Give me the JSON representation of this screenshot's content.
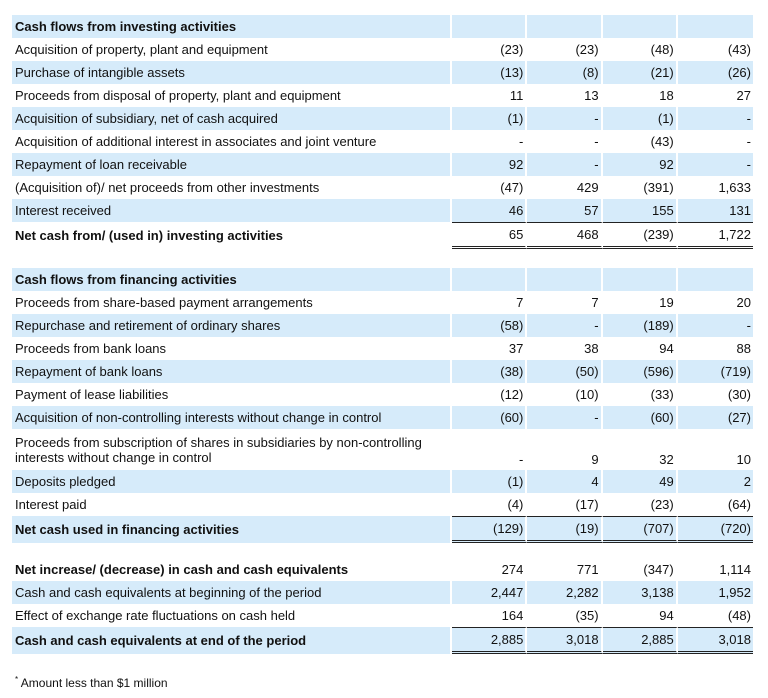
{
  "sections": [
    {
      "rows": [
        {
          "label": "Cash flows from investing activities",
          "values": [
            "",
            "",
            "",
            ""
          ],
          "bold": true,
          "shaded": true
        },
        {
          "label": "Acquisition of property, plant and equipment",
          "values": [
            "(23)",
            "(23)",
            "(48)",
            "(43)"
          ]
        },
        {
          "label": "Purchase of intangible assets",
          "values": [
            "(13)",
            "(8)",
            "(21)",
            "(26)"
          ],
          "shaded": true
        },
        {
          "label": "Proceeds from disposal of property, plant and equipment",
          "values": [
            "11",
            "13",
            "18",
            "27"
          ]
        },
        {
          "label": "Acquisition of subsidiary, net of cash acquired",
          "values": [
            "(1)",
            "-",
            "(1)",
            "-"
          ],
          "shaded": true
        },
        {
          "label": "Acquisition of additional interest in associates and joint venture",
          "values": [
            "-",
            "-",
            "(43)",
            "-"
          ]
        },
        {
          "label": "Repayment of loan receivable",
          "values": [
            "92",
            "-",
            "92",
            "-"
          ],
          "shaded": true
        },
        {
          "label": "(Acquisition of)/ net proceeds from other investments",
          "values": [
            "(47)",
            "429",
            "(391)",
            "1,633"
          ]
        },
        {
          "label": "Interest received",
          "values": [
            "46",
            "57",
            "155",
            "131"
          ],
          "shaded": true
        },
        {
          "label": "Net cash from/ (used in) investing activities",
          "values": [
            "65",
            "468",
            "(239)",
            "1,722"
          ],
          "bold": true,
          "total": true
        }
      ]
    },
    {
      "rows": [
        {
          "label": "Cash flows from financing activities",
          "values": [
            "",
            "",
            "",
            ""
          ],
          "bold": true,
          "shaded": true
        },
        {
          "label": "Proceeds from share-based payment arrangements",
          "values": [
            "7",
            "7",
            "19",
            "20"
          ]
        },
        {
          "label": "Repurchase and retirement of ordinary shares",
          "values": [
            "(58)",
            "-",
            "(189)",
            "-"
          ],
          "shaded": true
        },
        {
          "label": "Proceeds from bank loans",
          "values": [
            "37",
            "38",
            "94",
            "88"
          ]
        },
        {
          "label": "Repayment of bank loans",
          "values": [
            "(38)",
            "(50)",
            "(596)",
            "(719)"
          ],
          "shaded": true
        },
        {
          "label": "Payment of lease liabilities",
          "values": [
            "(12)",
            "(10)",
            "(33)",
            "(30)"
          ]
        },
        {
          "label": "Acquisition of non-controlling interests without change in control",
          "values": [
            "(60)",
            "-",
            "(60)",
            "(27)"
          ],
          "shaded": true
        },
        {
          "label": "Proceeds from subscription of shares in subsidiaries by non-controlling interests without change in control",
          "values": [
            "-",
            "9",
            "32",
            "10"
          ],
          "tall": true
        },
        {
          "label": "Deposits pledged",
          "values": [
            "(1)",
            "4",
            "49",
            "2"
          ],
          "shaded": true
        },
        {
          "label": "Interest paid",
          "values": [
            "(4)",
            "(17)",
            "(23)",
            "(64)"
          ]
        },
        {
          "label": "Net cash used in financing activities",
          "values": [
            "(129)",
            "(19)",
            "(707)",
            "(720)"
          ],
          "bold": true,
          "total": true,
          "shaded": true
        }
      ]
    },
    {
      "rows": [
        {
          "label": "Net increase/ (decrease) in cash and cash equivalents",
          "values": [
            "274",
            "771",
            "(347)",
            "1,114"
          ],
          "bold": true
        },
        {
          "label": "Cash and cash equivalents at beginning of the period",
          "values": [
            "2,447",
            "2,282",
            "3,138",
            "1,952"
          ],
          "shaded": true
        },
        {
          "label": "Effect of exchange rate fluctuations on cash held",
          "values": [
            "164",
            "(35)",
            "94",
            "(48)"
          ]
        },
        {
          "label": "Cash and cash equivalents at end of the period",
          "values": [
            "2,885",
            "3,018",
            "2,885",
            "3,018"
          ],
          "bold": true,
          "total": true,
          "shaded": true
        }
      ]
    }
  ],
  "footnote": {
    "marker": "*",
    "text": "Amount less than $1 million"
  },
  "colors": {
    "row_shade": "#d6ebfa",
    "text": "#111111"
  }
}
